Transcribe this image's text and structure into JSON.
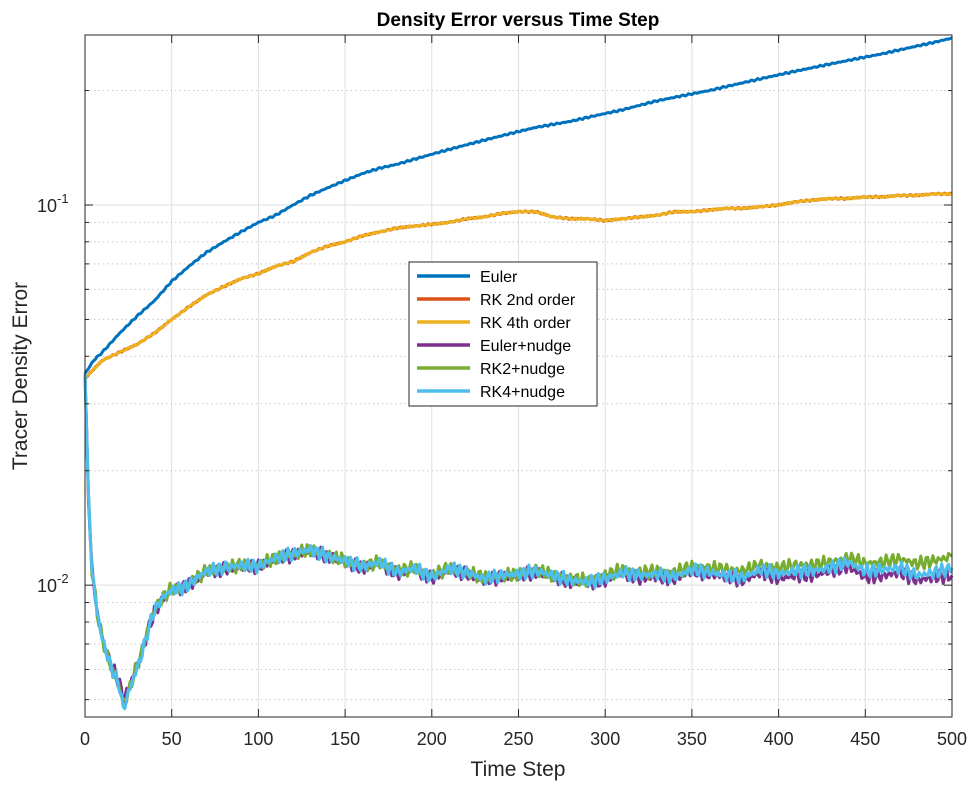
{
  "chart_data": {
    "type": "line",
    "title": "Density Error versus Time Step",
    "xlabel": "Time Step",
    "ylabel": "Tracer Density Error",
    "xlim": [
      0,
      500
    ],
    "ylim": [
      0.0045,
      0.28
    ],
    "yscale": "log",
    "grid": true,
    "legend_position": "center",
    "x_ticks": [
      0,
      50,
      100,
      150,
      200,
      250,
      300,
      350,
      400,
      450,
      500
    ],
    "y_ticks": [
      {
        "value": 0.01,
        "base": "10",
        "exp": "-2"
      },
      {
        "value": 0.1,
        "base": "10",
        "exp": "-1"
      }
    ],
    "series": [
      {
        "name": "Euler",
        "color": "#0072BD",
        "x": [
          0,
          5,
          10,
          20,
          30,
          40,
          50,
          60,
          70,
          80,
          90,
          100,
          110,
          120,
          130,
          140,
          150,
          160,
          170,
          180,
          190,
          200,
          210,
          220,
          230,
          240,
          250,
          260,
          270,
          280,
          290,
          300,
          310,
          320,
          330,
          340,
          350,
          360,
          370,
          380,
          390,
          400,
          410,
          420,
          430,
          440,
          450,
          460,
          470,
          480,
          490,
          500
        ],
        "y": [
          0.036,
          0.039,
          0.041,
          0.046,
          0.051,
          0.056,
          0.063,
          0.069,
          0.075,
          0.08,
          0.085,
          0.09,
          0.094,
          0.1,
          0.106,
          0.111,
          0.116,
          0.121,
          0.125,
          0.128,
          0.132,
          0.136,
          0.14,
          0.144,
          0.148,
          0.152,
          0.156,
          0.16,
          0.163,
          0.166,
          0.17,
          0.174,
          0.178,
          0.183,
          0.188,
          0.192,
          0.196,
          0.2,
          0.205,
          0.21,
          0.215,
          0.22,
          0.225,
          0.23,
          0.235,
          0.24,
          0.245,
          0.25,
          0.256,
          0.262,
          0.268,
          0.275
        ]
      },
      {
        "name": "RK 2nd order",
        "color": "#D95319",
        "x": [
          0,
          5,
          10,
          20,
          30,
          40,
          50,
          60,
          70,
          80,
          90,
          100,
          110,
          120,
          130,
          140,
          150,
          160,
          170,
          180,
          190,
          200,
          210,
          220,
          230,
          240,
          250,
          260,
          270,
          280,
          290,
          300,
          310,
          320,
          330,
          340,
          350,
          360,
          370,
          380,
          390,
          400,
          410,
          420,
          430,
          440,
          450,
          460,
          470,
          480,
          490,
          500
        ],
        "y": [
          0.035,
          0.037,
          0.039,
          0.041,
          0.043,
          0.046,
          0.05,
          0.054,
          0.058,
          0.061,
          0.064,
          0.066,
          0.069,
          0.071,
          0.075,
          0.078,
          0.08,
          0.083,
          0.085,
          0.087,
          0.088,
          0.089,
          0.09,
          0.092,
          0.093,
          0.095,
          0.096,
          0.096,
          0.093,
          0.092,
          0.092,
          0.091,
          0.092,
          0.093,
          0.094,
          0.096,
          0.096,
          0.097,
          0.098,
          0.098,
          0.099,
          0.1,
          0.102,
          0.103,
          0.104,
          0.104,
          0.105,
          0.105,
          0.106,
          0.106,
          0.107,
          0.107
        ]
      },
      {
        "name": "RK 4th order",
        "color": "#EDB120",
        "x": [
          0,
          5,
          10,
          20,
          30,
          40,
          50,
          60,
          70,
          80,
          90,
          100,
          110,
          120,
          130,
          140,
          150,
          160,
          170,
          180,
          190,
          200,
          210,
          220,
          230,
          240,
          250,
          260,
          270,
          280,
          290,
          300,
          310,
          320,
          330,
          340,
          350,
          360,
          370,
          380,
          390,
          400,
          410,
          420,
          430,
          440,
          450,
          460,
          470,
          480,
          490,
          500
        ],
        "y": [
          0.035,
          0.037,
          0.039,
          0.041,
          0.043,
          0.046,
          0.05,
          0.054,
          0.058,
          0.061,
          0.064,
          0.066,
          0.069,
          0.071,
          0.075,
          0.078,
          0.08,
          0.083,
          0.085,
          0.087,
          0.088,
          0.089,
          0.09,
          0.092,
          0.093,
          0.095,
          0.096,
          0.096,
          0.093,
          0.092,
          0.092,
          0.091,
          0.092,
          0.093,
          0.094,
          0.096,
          0.096,
          0.097,
          0.098,
          0.098,
          0.099,
          0.1,
          0.102,
          0.103,
          0.104,
          0.104,
          0.105,
          0.105,
          0.106,
          0.106,
          0.107,
          0.107
        ]
      },
      {
        "name": "Euler+nudge",
        "color": "#7E2F8E",
        "x": [
          0,
          2,
          4,
          7,
          10,
          15,
          20,
          22,
          25,
          28,
          32,
          36,
          40,
          45,
          50,
          55,
          60,
          65,
          70,
          80,
          90,
          100,
          110,
          120,
          130,
          140,
          150,
          160,
          170,
          180,
          190,
          200,
          210,
          220,
          230,
          240,
          250,
          260,
          270,
          280,
          290,
          300,
          310,
          320,
          330,
          340,
          350,
          360,
          370,
          380,
          390,
          400,
          410,
          420,
          430,
          440,
          450,
          460,
          470,
          480,
          490,
          500
        ],
        "y": [
          0.036,
          0.017,
          0.011,
          0.0085,
          0.0072,
          0.0062,
          0.0055,
          0.005,
          0.0053,
          0.0058,
          0.0065,
          0.0075,
          0.0085,
          0.0092,
          0.0097,
          0.0098,
          0.01,
          0.0104,
          0.0108,
          0.011,
          0.0112,
          0.0112,
          0.0117,
          0.012,
          0.0123,
          0.0119,
          0.0115,
          0.0111,
          0.0114,
          0.0107,
          0.011,
          0.0104,
          0.011,
          0.0107,
          0.0103,
          0.0105,
          0.0106,
          0.0108,
          0.0105,
          0.0102,
          0.0101,
          0.0103,
          0.0108,
          0.0104,
          0.0105,
          0.0104,
          0.0109,
          0.0107,
          0.0105,
          0.0103,
          0.0108,
          0.0104,
          0.0106,
          0.0106,
          0.0109,
          0.0112,
          0.0105,
          0.0106,
          0.0108,
          0.0103,
          0.0105,
          0.0106
        ]
      },
      {
        "name": "RK2+nudge",
        "color": "#77AC30",
        "x": [
          0,
          2,
          4,
          7,
          10,
          15,
          20,
          22,
          25,
          28,
          32,
          36,
          40,
          45,
          50,
          55,
          60,
          65,
          70,
          80,
          90,
          100,
          110,
          120,
          130,
          140,
          150,
          160,
          170,
          180,
          190,
          200,
          210,
          220,
          230,
          240,
          250,
          260,
          270,
          280,
          290,
          300,
          310,
          320,
          330,
          340,
          350,
          360,
          370,
          380,
          390,
          400,
          410,
          420,
          430,
          440,
          450,
          460,
          470,
          480,
          490,
          500
        ],
        "y": [
          0.036,
          0.017,
          0.011,
          0.0085,
          0.0072,
          0.0061,
          0.0054,
          0.0049,
          0.0052,
          0.0058,
          0.0065,
          0.0076,
          0.0086,
          0.0093,
          0.0098,
          0.0098,
          0.0101,
          0.0105,
          0.0109,
          0.0111,
          0.0113,
          0.0113,
          0.0118,
          0.0121,
          0.0124,
          0.012,
          0.0116,
          0.0112,
          0.0115,
          0.0109,
          0.0111,
          0.0106,
          0.0111,
          0.0108,
          0.0105,
          0.0106,
          0.0107,
          0.011,
          0.0106,
          0.0104,
          0.0103,
          0.0106,
          0.011,
          0.0108,
          0.0109,
          0.0108,
          0.0112,
          0.0111,
          0.011,
          0.0109,
          0.0113,
          0.0111,
          0.0113,
          0.0113,
          0.0115,
          0.0118,
          0.0114,
          0.0115,
          0.0117,
          0.0114,
          0.0116,
          0.0119
        ]
      },
      {
        "name": "RK4+nudge",
        "color": "#4DBEEE",
        "x": [
          0,
          2,
          4,
          7,
          10,
          15,
          20,
          22,
          25,
          28,
          32,
          36,
          40,
          45,
          50,
          55,
          60,
          65,
          70,
          80,
          90,
          100,
          110,
          120,
          130,
          140,
          150,
          160,
          170,
          180,
          190,
          200,
          210,
          220,
          230,
          240,
          250,
          260,
          270,
          280,
          290,
          300,
          310,
          320,
          330,
          340,
          350,
          360,
          370,
          380,
          390,
          400,
          410,
          420,
          430,
          440,
          450,
          460,
          470,
          480,
          490,
          500
        ],
        "y": [
          0.036,
          0.017,
          0.011,
          0.0085,
          0.0072,
          0.0061,
          0.0054,
          0.0047,
          0.0052,
          0.0057,
          0.0064,
          0.0075,
          0.0086,
          0.0093,
          0.0097,
          0.0098,
          0.01,
          0.0105,
          0.0109,
          0.0111,
          0.0113,
          0.0112,
          0.0118,
          0.0121,
          0.0124,
          0.0119,
          0.0116,
          0.0112,
          0.0115,
          0.0108,
          0.0111,
          0.0105,
          0.0111,
          0.0108,
          0.0104,
          0.0106,
          0.0107,
          0.0109,
          0.0106,
          0.0103,
          0.0102,
          0.0104,
          0.0108,
          0.0106,
          0.0107,
          0.0105,
          0.011,
          0.0108,
          0.0106,
          0.0105,
          0.011,
          0.0107,
          0.0109,
          0.0109,
          0.0111,
          0.0115,
          0.0109,
          0.011,
          0.0111,
          0.0106,
          0.0108,
          0.0111
        ]
      }
    ]
  }
}
